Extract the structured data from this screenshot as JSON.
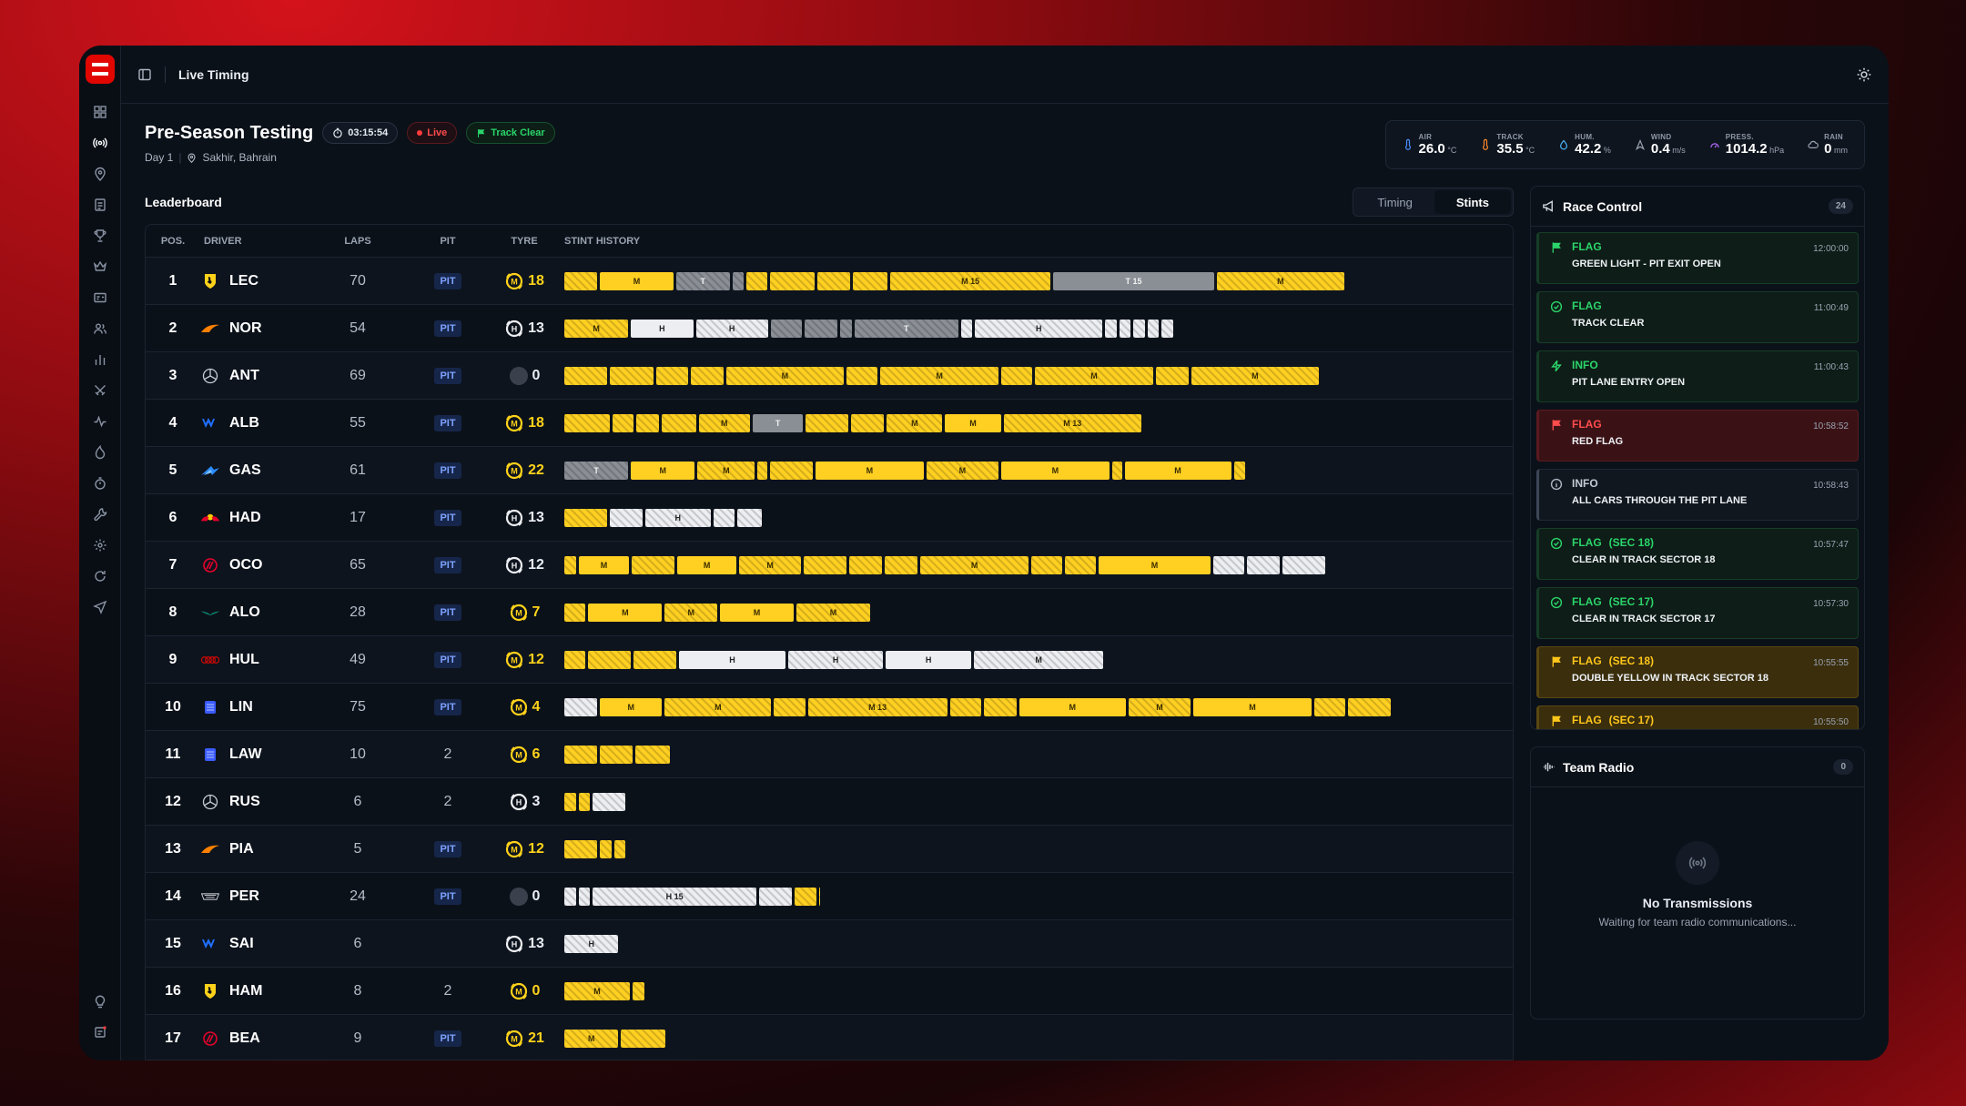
{
  "app": {
    "title": "Live Timing"
  },
  "session": {
    "name": "Pre-Season Testing",
    "clock": "03:15:54",
    "live": "Live",
    "status": "Track Clear",
    "day": "Day 1",
    "location": "Sakhir, Bahrain"
  },
  "weather": [
    {
      "label": "AIR",
      "value": "26.0",
      "unit": "°C",
      "icon": "thermometer-icon",
      "color": "#4b8dff"
    },
    {
      "label": "TRACK",
      "value": "35.5",
      "unit": "°C",
      "icon": "thermometer-icon",
      "color": "#ff8a2b"
    },
    {
      "label": "HUM.",
      "value": "42.2",
      "unit": "%",
      "icon": "droplet-icon",
      "color": "#4bb8ff"
    },
    {
      "label": "WIND",
      "value": "0.4",
      "unit": "m/s",
      "icon": "wind-icon",
      "color": "#9aa3b2"
    },
    {
      "label": "PRESS.",
      "value": "1014.2",
      "unit": "hPa",
      "icon": "gauge-icon",
      "color": "#b46bff"
    },
    {
      "label": "RAIN",
      "value": "0",
      "unit": "mm",
      "icon": "cloud-icon",
      "color": "#9aa3b2"
    }
  ],
  "leaderboard": {
    "title": "Leaderboard",
    "tabs": [
      "Timing",
      "Stints"
    ],
    "active_tab": "Stints",
    "columns": [
      "POS.",
      "DRIVER",
      "LAPS",
      "PIT",
      "TYRE",
      "STINT HISTORY"
    ],
    "rows": [
      {
        "pos": "1",
        "driver": "LEC",
        "team": "ferrari",
        "laps": "70",
        "pit": "PIT",
        "tyre": "M",
        "tyre_laps": "18",
        "stints": [
          [
            "M",
            40,
            ""
          ],
          [
            "M",
            90,
            "M"
          ],
          [
            "T",
            65,
            "T"
          ],
          [
            "T",
            14,
            ""
          ],
          [
            "M",
            25,
            ""
          ],
          [
            "M",
            55,
            ""
          ],
          [
            "M",
            40,
            ""
          ],
          [
            "M",
            42,
            ""
          ],
          [
            "M",
            196,
            "M 15"
          ],
          [
            "T",
            196,
            "T 15"
          ],
          [
            "M",
            156,
            "M"
          ]
        ]
      },
      {
        "pos": "2",
        "driver": "NOR",
        "team": "mclaren",
        "laps": "54",
        "pit": "PIT",
        "tyre": "H",
        "tyre_laps": "13",
        "stints": [
          [
            "M",
            78,
            "M"
          ],
          [
            "H",
            76,
            "H"
          ],
          [
            "H",
            88,
            "H"
          ],
          [
            "T",
            38,
            ""
          ],
          [
            "T",
            40,
            ""
          ],
          [
            "T",
            14,
            ""
          ],
          [
            "T",
            127,
            "T"
          ],
          [
            "H",
            14,
            ""
          ],
          [
            "H",
            155,
            "H"
          ],
          [
            "H",
            14,
            ""
          ],
          [
            "H",
            14,
            ""
          ],
          [
            "H",
            14,
            ""
          ],
          [
            "H",
            14,
            ""
          ],
          [
            "H",
            14,
            ""
          ]
        ]
      },
      {
        "pos": "3",
        "driver": "ANT",
        "team": "mercedes",
        "laps": "69",
        "pit": "PIT",
        "tyre": "",
        "tyre_laps": "0",
        "stints": [
          [
            "M",
            52,
            ""
          ],
          [
            "M",
            54,
            ""
          ],
          [
            "M",
            38,
            ""
          ],
          [
            "M",
            40,
            ""
          ],
          [
            "M",
            144,
            "M"
          ],
          [
            "M",
            38,
            ""
          ],
          [
            "M",
            144,
            "M"
          ],
          [
            "M",
            38,
            ""
          ],
          [
            "M",
            144,
            "M"
          ],
          [
            "M",
            40,
            ""
          ],
          [
            "M",
            156,
            "M"
          ]
        ]
      },
      {
        "pos": "4",
        "driver": "ALB",
        "team": "williams",
        "laps": "55",
        "pit": "PIT",
        "tyre": "M",
        "tyre_laps": "18",
        "stints": [
          [
            "M",
            55,
            ""
          ],
          [
            "M",
            26,
            ""
          ],
          [
            "M",
            28,
            ""
          ],
          [
            "M",
            42,
            ""
          ],
          [
            "M",
            62,
            "M"
          ],
          [
            "T",
            62,
            "T"
          ],
          [
            "M",
            52,
            ""
          ],
          [
            "M",
            40,
            ""
          ],
          [
            "M",
            68,
            "M"
          ],
          [
            "M",
            68,
            "M"
          ],
          [
            "M",
            168,
            "M 13"
          ]
        ]
      },
      {
        "pos": "5",
        "driver": "GAS",
        "team": "alpine",
        "laps": "61",
        "pit": "PIT",
        "tyre": "M",
        "tyre_laps": "22",
        "stints": [
          [
            "T",
            78,
            "T"
          ],
          [
            "M",
            78,
            "M"
          ],
          [
            "M",
            70,
            "M"
          ],
          [
            "M",
            12,
            ""
          ],
          [
            "M",
            52,
            ""
          ],
          [
            "M",
            132,
            "M"
          ],
          [
            "M",
            88,
            "M"
          ],
          [
            "M",
            132,
            "M"
          ],
          [
            "M",
            12,
            ""
          ],
          [
            "M",
            130,
            "M"
          ],
          [
            "M",
            14,
            ""
          ]
        ]
      },
      {
        "pos": "6",
        "driver": "HAD",
        "team": "redbull",
        "laps": "17",
        "pit": "PIT",
        "tyre": "H",
        "tyre_laps": "13",
        "stints": [
          [
            "M",
            52,
            ""
          ],
          [
            "H",
            40,
            ""
          ],
          [
            "H",
            80,
            "H"
          ],
          [
            "H",
            26,
            ""
          ],
          [
            "H",
            30,
            ""
          ]
        ]
      },
      {
        "pos": "7",
        "driver": "OCO",
        "team": "haas",
        "laps": "65",
        "pit": "PIT",
        "tyre": "H",
        "tyre_laps": "12",
        "stints": [
          [
            "M",
            14,
            ""
          ],
          [
            "M",
            62,
            "M"
          ],
          [
            "M",
            52,
            ""
          ],
          [
            "M",
            72,
            "M"
          ],
          [
            "M",
            76,
            "M"
          ],
          [
            "M",
            52,
            ""
          ],
          [
            "M",
            40,
            ""
          ],
          [
            "M",
            40,
            ""
          ],
          [
            "M",
            132,
            "M"
          ],
          [
            "M",
            38,
            ""
          ],
          [
            "M",
            38,
            ""
          ],
          [
            "M",
            136,
            "M"
          ],
          [
            "H",
            38,
            ""
          ],
          [
            "H",
            40,
            ""
          ],
          [
            "H",
            52,
            ""
          ]
        ]
      },
      {
        "pos": "8",
        "driver": "ALO",
        "team": "aston",
        "laps": "28",
        "pit": "PIT",
        "tyre": "M",
        "tyre_laps": "7",
        "stints": [
          [
            "M",
            26,
            ""
          ],
          [
            "M",
            90,
            "M"
          ],
          [
            "M",
            64,
            "M"
          ],
          [
            "M",
            90,
            "M"
          ],
          [
            "M",
            90,
            "M"
          ]
        ]
      },
      {
        "pos": "9",
        "driver": "HUL",
        "team": "audi",
        "laps": "49",
        "pit": "PIT",
        "tyre": "M",
        "tyre_laps": "12",
        "stints": [
          [
            "M",
            26,
            ""
          ],
          [
            "M",
            52,
            ""
          ],
          [
            "M",
            52,
            ""
          ],
          [
            "H",
            130,
            "H"
          ],
          [
            "H",
            116,
            "H"
          ],
          [
            "H",
            104,
            "H"
          ],
          [
            "H",
            158,
            "M"
          ]
        ]
      },
      {
        "pos": "10",
        "driver": "LIN",
        "team": "rb",
        "laps": "75",
        "pit": "PIT",
        "tyre": "M",
        "tyre_laps": "4",
        "stints": [
          [
            "H",
            40,
            ""
          ],
          [
            "M",
            76,
            "M"
          ],
          [
            "M",
            130,
            "M"
          ],
          [
            "M",
            38,
            ""
          ],
          [
            "M",
            170,
            "M 13"
          ],
          [
            "M",
            38,
            ""
          ],
          [
            "M",
            40,
            ""
          ],
          [
            "M",
            130,
            "M"
          ],
          [
            "M",
            76,
            "M"
          ],
          [
            "M",
            144,
            "M"
          ],
          [
            "M",
            38,
            ""
          ],
          [
            "M",
            52,
            ""
          ]
        ]
      },
      {
        "pos": "11",
        "driver": "LAW",
        "team": "rb",
        "laps": "10",
        "pit": "2",
        "tyre": "M",
        "tyre_laps": "6",
        "stints": [
          [
            "M",
            40,
            ""
          ],
          [
            "M",
            40,
            ""
          ],
          [
            "M",
            42,
            ""
          ]
        ]
      },
      {
        "pos": "12",
        "driver": "RUS",
        "team": "mercedes",
        "laps": "6",
        "pit": "2",
        "tyre": "H",
        "tyre_laps": "3",
        "stints": [
          [
            "M",
            14,
            ""
          ],
          [
            "M",
            14,
            ""
          ],
          [
            "H",
            40,
            ""
          ]
        ]
      },
      {
        "pos": "13",
        "driver": "PIA",
        "team": "mclaren",
        "laps": "5",
        "pit": "PIT",
        "tyre": "M",
        "tyre_laps": "12",
        "stints": [
          [
            "M",
            40,
            ""
          ],
          [
            "M",
            14,
            ""
          ],
          [
            "M",
            14,
            ""
          ]
        ]
      },
      {
        "pos": "14",
        "driver": "PER",
        "team": "cadillac",
        "laps": "24",
        "pit": "PIT",
        "tyre": "",
        "tyre_laps": "0",
        "stints": [
          [
            "H",
            14,
            ""
          ],
          [
            "H",
            14,
            ""
          ],
          [
            "H",
            200,
            "H 15"
          ],
          [
            "H",
            40,
            ""
          ],
          [
            "M",
            26,
            ""
          ],
          [
            "M",
            2,
            ""
          ]
        ]
      },
      {
        "pos": "15",
        "driver": "SAI",
        "team": "williams",
        "laps": "6",
        "pit": "",
        "tyre": "H",
        "tyre_laps": "13",
        "stints": [
          [
            "H",
            66,
            "H"
          ]
        ]
      },
      {
        "pos": "16",
        "driver": "HAM",
        "team": "ferrari",
        "laps": "8",
        "pit": "2",
        "tyre": "M",
        "tyre_laps": "0",
        "stints": [
          [
            "M",
            80,
            "M"
          ],
          [
            "M",
            14,
            ""
          ]
        ]
      },
      {
        "pos": "17",
        "driver": "BEA",
        "team": "haas",
        "laps": "9",
        "pit": "PIT",
        "tyre": "M",
        "tyre_laps": "21",
        "stints": [
          [
            "M",
            66,
            "M"
          ],
          [
            "M",
            54,
            ""
          ]
        ]
      }
    ]
  },
  "race_control": {
    "title": "Race Control",
    "count": "24",
    "messages": [
      {
        "kind": "g",
        "icon": "flag-icon",
        "category": "FLAG",
        "sector": "",
        "text": "GREEN LIGHT - PIT EXIT OPEN",
        "time": "12:00:00"
      },
      {
        "kind": "g",
        "icon": "check-circle-icon",
        "category": "FLAG",
        "sector": "",
        "text": "TRACK CLEAR",
        "time": "11:00:49"
      },
      {
        "kind": "g",
        "icon": "bolt-icon",
        "category": "INFO",
        "sector": "",
        "text": "PIT LANE ENTRY OPEN",
        "time": "11:00:43"
      },
      {
        "kind": "r",
        "icon": "flag-icon",
        "category": "FLAG",
        "sector": "",
        "text": "RED FLAG",
        "time": "10:58:52"
      },
      {
        "kind": "n",
        "icon": "info-icon",
        "category": "INFO",
        "sector": "",
        "text": "ALL CARS THROUGH THE PIT LANE",
        "time": "10:58:43"
      },
      {
        "kind": "g",
        "icon": "check-circle-icon",
        "category": "FLAG",
        "sector": "(SEC 18)",
        "text": "CLEAR IN TRACK SECTOR 18",
        "time": "10:57:47"
      },
      {
        "kind": "g",
        "icon": "check-circle-icon",
        "category": "FLAG",
        "sector": "(SEC 17)",
        "text": "CLEAR IN TRACK SECTOR 17",
        "time": "10:57:30"
      },
      {
        "kind": "y",
        "icon": "flag-icon",
        "category": "FLAG",
        "sector": "(SEC 18)",
        "text": "DOUBLE YELLOW IN TRACK SECTOR 18",
        "time": "10:55:55"
      },
      {
        "kind": "y",
        "icon": "flag-icon",
        "category": "FLAG",
        "sector": "(SEC 17)",
        "text": "",
        "time": "10:55:50"
      }
    ]
  },
  "team_radio": {
    "title": "Team Radio",
    "count": "0",
    "empty_title": "No Transmissions",
    "empty_sub": "Waiting for team radio communications..."
  }
}
